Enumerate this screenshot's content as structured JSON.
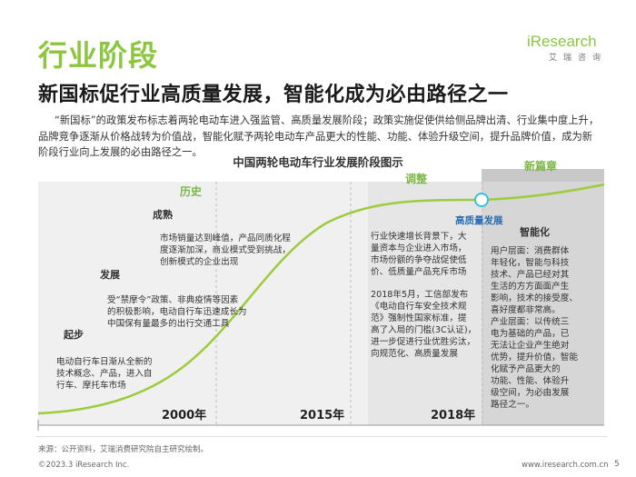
{
  "header": {
    "title": "行业阶段",
    "subtitle": "新国标促行业高质量发展，智能化成为必由路径之一",
    "logo_main": "iResearch",
    "logo_sub": "艾瑞咨询"
  },
  "intro": "“新国标”的政策发布标志着两轮电动车进入强监管、高质量发展阶段；政策实施促使供给侧品牌出清、行业集中度上升，品牌竞争逐渐从价格战转为价值战，智能化赋予两轮电动车产品更大的性能、功能、体验升级空间，提升品牌价值，成为新阶段行业向上发展的必由路径之一。",
  "diagram": {
    "title": "中国两轮电动车行业发展阶段图示",
    "stages": [
      "历史",
      "调整",
      "新篇章"
    ],
    "years": [
      "2000年",
      "2015年",
      "2018年"
    ],
    "phases": {
      "start": {
        "label": "起步",
        "desc": [
          "电动自行车日渐从全新的",
          "技术概念、产品，进入自",
          "行车、摩托车市场"
        ]
      },
      "develop": {
        "label": "发展",
        "desc": [
          "受“禁摩令”政策、非典疫情等因素",
          "的积极影响，电动自行车迅速成长为",
          "中国保有量最多的出行交通工具"
        ]
      },
      "mature": {
        "label": "成熟",
        "desc": [
          "市场销量达到峰值，产品同质化程",
          "度逐渐加深，商业模式受到挑战，",
          "创新模式的企业出现"
        ]
      },
      "adjust": {
        "desc1": [
          "行业快速增长背景下，大",
          "量资本与企业进入市场，",
          "市场份额的争夺战促使低",
          "价、低质量产品充斥市场"
        ],
        "desc2": [
          "2018年5月，工信部发布",
          "《电动自行车安全技术规",
          "范》强制性国家标准，提",
          "高了入局的门槛(3C认证)，",
          "进一步促进行业优胜劣汰，",
          "向规范化、高质量发展"
        ]
      },
      "quality": {
        "label": "高质量发展"
      },
      "smart": {
        "label": "智能化",
        "desc": [
          "用户层面：消费群体",
          "年轻化，智能与科技",
          "技术、产品已经对其",
          "生活的方方面面产生",
          "影响，技术的接受度、",
          "喜好度都非常高。",
          "产业层面：以传统三",
          "电为基础的产品，已",
          "无法让企业产生绝对",
          "优势，提升价值，智能",
          "化赋予产品更大的",
          "功能、性能、体验升",
          "级空间，为必由发展",
          "路径之一。"
        ]
      }
    }
  },
  "footer": {
    "source": "来源：公开资料，艾瑞消费研究院自主研究绘制。",
    "copyright": "©2023.3 iResearch Inc.",
    "site": "www.iresearch.com.cn",
    "page": "5"
  },
  "colors": {
    "accent": "#8cc63f",
    "curve": "#9ccc3c",
    "dark_band": "#d9d9d9",
    "light_band": "#f0f0f0",
    "marker": "#37c1d8"
  }
}
